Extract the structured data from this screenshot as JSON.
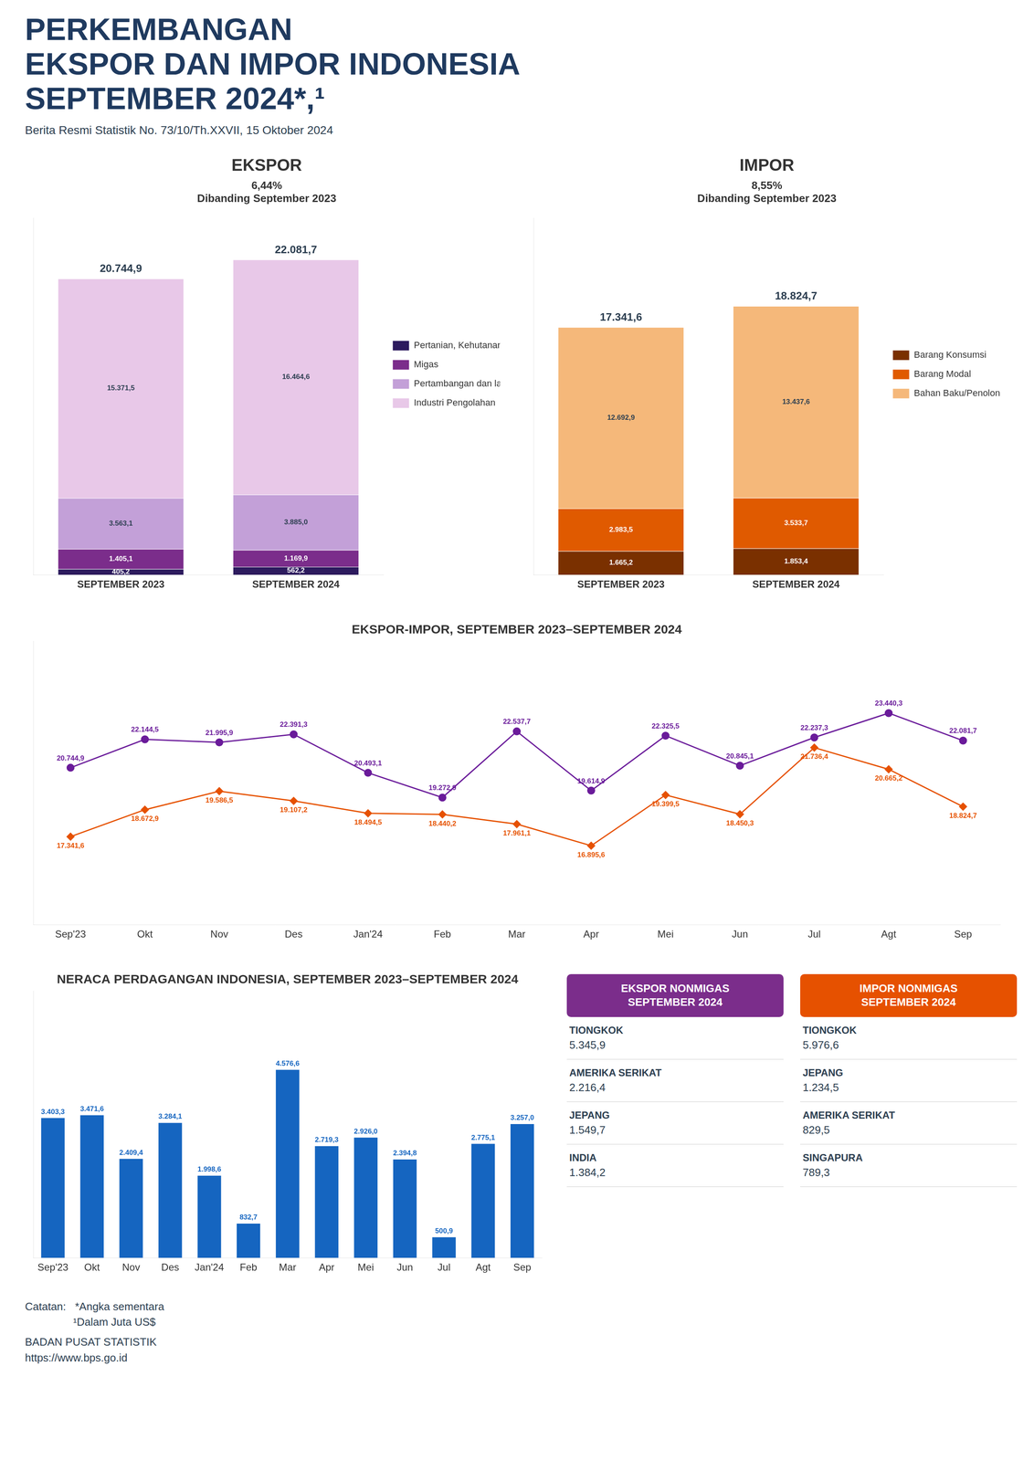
{
  "title": [
    "PERKEMBANGAN",
    "EKSPOR DAN IMPOR INDONESIA",
    "SEPTEMBER 2024*,¹"
  ],
  "subtitle": "Berita Resmi Statistik No. 73/10/Th.XXVII, 15 Oktober 2024",
  "chart_data": [
    {
      "type": "bar",
      "stacked": true,
      "title": "EKSPOR",
      "annotations": [
        "6,44%",
        "Dibanding September 2023"
      ],
      "categories": [
        "SEPTEMBER 2023",
        "SEPTEMBER 2024"
      ],
      "series": [
        {
          "name": "Pertanian, Kehutanan, dan Perikanan",
          "color": "#2d1b5e",
          "values": [
            405.2,
            562.2
          ],
          "value_labels": [
            "405,2",
            "562,2"
          ]
        },
        {
          "name": "Migas",
          "color": "#7b2d8b",
          "values": [
            1405.1,
            1169.9
          ],
          "value_labels": [
            "1.405,1",
            "1.169,9"
          ]
        },
        {
          "name": "Pertambangan dan lainnya",
          "color": "#c3a0d8",
          "values": [
            3563.1,
            3885.0
          ],
          "value_labels": [
            "3.563,1",
            "3.885,0"
          ]
        },
        {
          "name": "Industri Pengolahan",
          "color": "#e8c8e8",
          "values": [
            15371.5,
            16464.6
          ],
          "value_labels": [
            "15.371,5",
            "16.464,6"
          ]
        }
      ],
      "totals": [
        20744.9,
        22081.7
      ],
      "total_labels": [
        "20.744,9",
        "22.081,7"
      ],
      "ylim": [
        0,
        25000
      ],
      "tick_labels": "x",
      "grid": false,
      "legend": "right",
      "data_labels": true
    },
    {
      "type": "bar",
      "stacked": true,
      "title": "IMPOR",
      "annotations": [
        "8,55%",
        "Dibanding September 2023"
      ],
      "categories": [
        "SEPTEMBER 2023",
        "SEPTEMBER 2024"
      ],
      "series": [
        {
          "name": "Barang Konsumsi",
          "color": "#7a3000",
          "values": [
            1665.2,
            1853.4
          ],
          "value_labels": [
            "1.665,2",
            "1.853,4"
          ]
        },
        {
          "name": "Barang Modal",
          "color": "#e05a00",
          "values": [
            2983.5,
            3533.7
          ],
          "value_labels": [
            "2.983,5",
            "3.533,7"
          ]
        },
        {
          "name": "Bahan Baku/Penolong",
          "color": "#f5b87a",
          "values": [
            12692.9,
            13437.6
          ],
          "value_labels": [
            "12.692,9",
            "13.437,6"
          ]
        }
      ],
      "totals": [
        17341.6,
        18824.7
      ],
      "total_labels": [
        "17.341,6",
        "18.824,7"
      ],
      "ylim": [
        0,
        25000
      ],
      "tick_labels": "x",
      "grid": false,
      "legend": "right",
      "data_labels": true
    },
    {
      "type": "line",
      "title": "EKSPOR-IMPOR, SEPTEMBER 2023–SEPTEMBER 2024",
      "categories": [
        "Sep'23",
        "Okt",
        "Nov",
        "Des",
        "Jan'24",
        "Feb",
        "Mar",
        "Apr",
        "Mei",
        "Jun",
        "Jul",
        "Agt",
        "Sep"
      ],
      "series": [
        {
          "color": "#6a1b9a",
          "marker": "circle",
          "values": [
            20744.9,
            22144.5,
            21995.9,
            22391.3,
            20493.1,
            19272.9,
            22537.7,
            19614.9,
            22325.5,
            20845.1,
            22237.3,
            23440.3,
            22081.7
          ],
          "value_labels": [
            "20.744,9",
            "22.144,5",
            "21.995,9",
            "22.391,3",
            "20.493,1",
            "19.272,9",
            "22.537,7",
            "19.614,9",
            "22.325,5",
            "20.845,1",
            "22.237,3",
            "23.440,3",
            "22.081,7"
          ]
        },
        {
          "color": "#e65100",
          "marker": "diamond",
          "values": [
            17341.6,
            18672.9,
            19586.5,
            19107.2,
            18494.5,
            18440.2,
            17961.1,
            16895.6,
            19399.5,
            18450.3,
            21736.4,
            20665.2,
            18824.7
          ],
          "value_labels": [
            "17.341,6",
            "18.672,9",
            "19.586,5",
            "19.107,2",
            "18.494,5",
            "18.440,2",
            "17.961,1",
            "16.895,6",
            "19.399,5",
            "18.450,3",
            "21.736,4",
            "20.665,2",
            "18.824,7"
          ]
        }
      ],
      "ylim": [
        13000,
        27000
      ],
      "tick_labels": "x",
      "grid": false,
      "data_labels": true
    },
    {
      "type": "bar",
      "title": "NERACA PERDAGANGAN INDONESIA, SEPTEMBER 2023–SEPTEMBER 2024",
      "categories": [
        "Sep'23",
        "Okt",
        "Nov",
        "Des",
        "Jan'24",
        "Feb",
        "Mar",
        "Apr",
        "Mei",
        "Jun",
        "Jul",
        "Agt",
        "Sep"
      ],
      "values": [
        3403.3,
        3471.6,
        2409.4,
        3284.1,
        1998.6,
        832.7,
        4576.6,
        2719.3,
        2926.0,
        2394.8,
        500.9,
        2775.1,
        3257.0
      ],
      "value_labels": [
        "3.403,3",
        "3.471,6",
        "2.409,4",
        "3.284,1",
        "1.998,6",
        "832,7",
        "4.576,6",
        "2.719,3",
        "2.926,0",
        "2.394,8",
        "500,9",
        "2.775,1",
        "3.257,0"
      ],
      "color": "#1565c0",
      "ylim": [
        0,
        6500
      ],
      "tick_labels": "x",
      "grid": false,
      "data_labels": true
    },
    {
      "type": "table",
      "title": "EKSPOR NONMIGAS\nSEPTEMBER 2024",
      "color": "#7b2d8b",
      "categories": [
        "TIONGKOK",
        "AMERIKA SERIKAT",
        "JEPANG",
        "INDIA"
      ],
      "values": [
        5345.9,
        2216.4,
        1549.7,
        1384.2
      ],
      "value_labels": [
        "5.345,9",
        "2.216,4",
        "1.549,7",
        "1.384,2"
      ]
    },
    {
      "type": "table",
      "title": "IMPOR NONMIGAS\nSEPTEMBER 2024",
      "color": "#e65100",
      "categories": [
        "TIONGKOK",
        "JEPANG",
        "AMERIKA SERIKAT",
        "SINGAPURA"
      ],
      "values": [
        5976.6,
        1234.5,
        829.5,
        789.3
      ],
      "value_labels": [
        "5.976,6",
        "1.234,5",
        "829,5",
        "789,3"
      ]
    }
  ],
  "annotations": [
    "Catatan:   *Angka sementara\n                ¹Dalam Juta US$",
    "BADAN PUSAT STATISTIK\nhttps://www.bps.go.id"
  ]
}
